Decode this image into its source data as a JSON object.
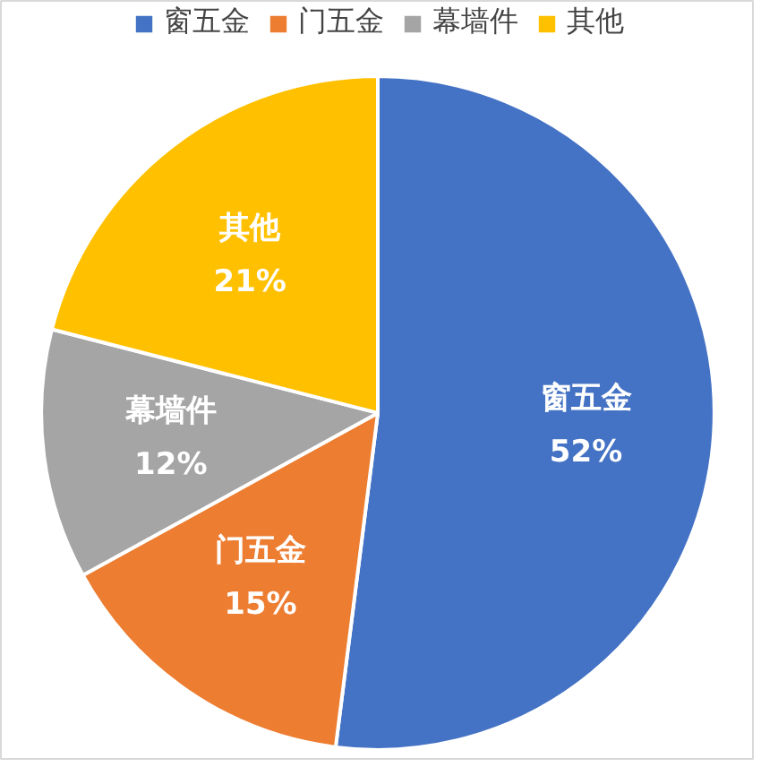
{
  "chart_data": {
    "type": "pie",
    "categories": [
      "窗五金",
      "门五金",
      "幕墙件",
      "其他"
    ],
    "values": [
      52,
      15,
      12,
      21
    ],
    "colors": [
      "#4472c4",
      "#ed7d31",
      "#a5a5a5",
      "#ffc000"
    ],
    "value_labels": [
      "52%",
      "15%",
      "12%",
      "21%"
    ],
    "legend": "top"
  }
}
